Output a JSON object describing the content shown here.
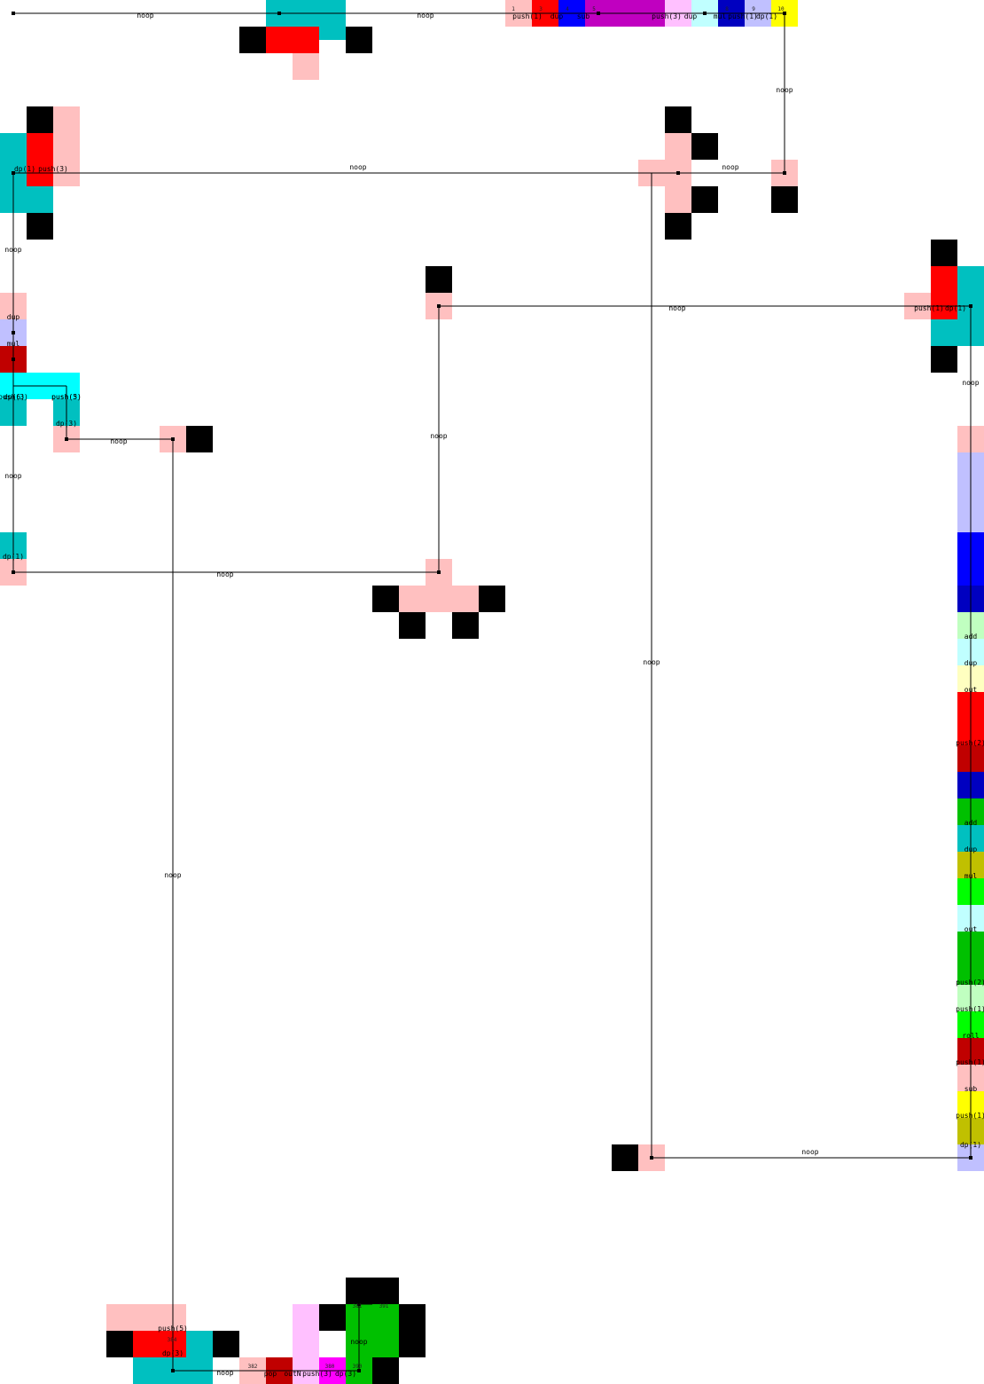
{
  "diagram": {
    "edge_label": "noop",
    "instructions": [
      "push(1)",
      "dup",
      "sub",
      "push(3)",
      "dup",
      "mul",
      "push(1)",
      "dp(1)",
      "dp(1)",
      "push(3)",
      "dup",
      "mul",
      "push(3)",
      "push(5)",
      "dp(3)",
      "push(1)",
      "dp(1)",
      "dp(1)",
      "dp(6)",
      "push(3)",
      "dp(3)",
      "pop",
      "outN",
      "push(3)",
      "dp(3)",
      "push(5)",
      "add",
      "dup",
      "out",
      "push(2)",
      "add",
      "dup",
      "mul",
      "out",
      "push(2)",
      "push(1)",
      "roll",
      "push(1)",
      "sub",
      "push(1)",
      "dp(1)"
    ],
    "codel_numbers": [
      "1",
      "3",
      "4",
      "5",
      "8",
      "9",
      "10",
      "380",
      "381",
      "382",
      "384",
      "390",
      "391"
    ],
    "colors": {
      "cyan_dark": "#00c0c0",
      "red": "#ff0000",
      "red_dark": "#c00000",
      "pink": "#ffc0c0",
      "black": "#000000",
      "blue": "#0000ff",
      "blue_dark": "#0000c0",
      "magenta_dark": "#c000c0",
      "magenta": "#ff00ff",
      "light_magenta": "#ffc0ff",
      "light_cyan": "#c0ffff",
      "cyan": "#00ffff",
      "light_blue": "#c0c0ff",
      "yellow": "#ffff00",
      "yellow_dark": "#c0c000",
      "light_yellow": "#ffffc0",
      "green": "#00ff00",
      "green_dark": "#00c000",
      "light_green": "#c0ffc0",
      "white": "#ffffff",
      "edge": "#000000"
    }
  }
}
